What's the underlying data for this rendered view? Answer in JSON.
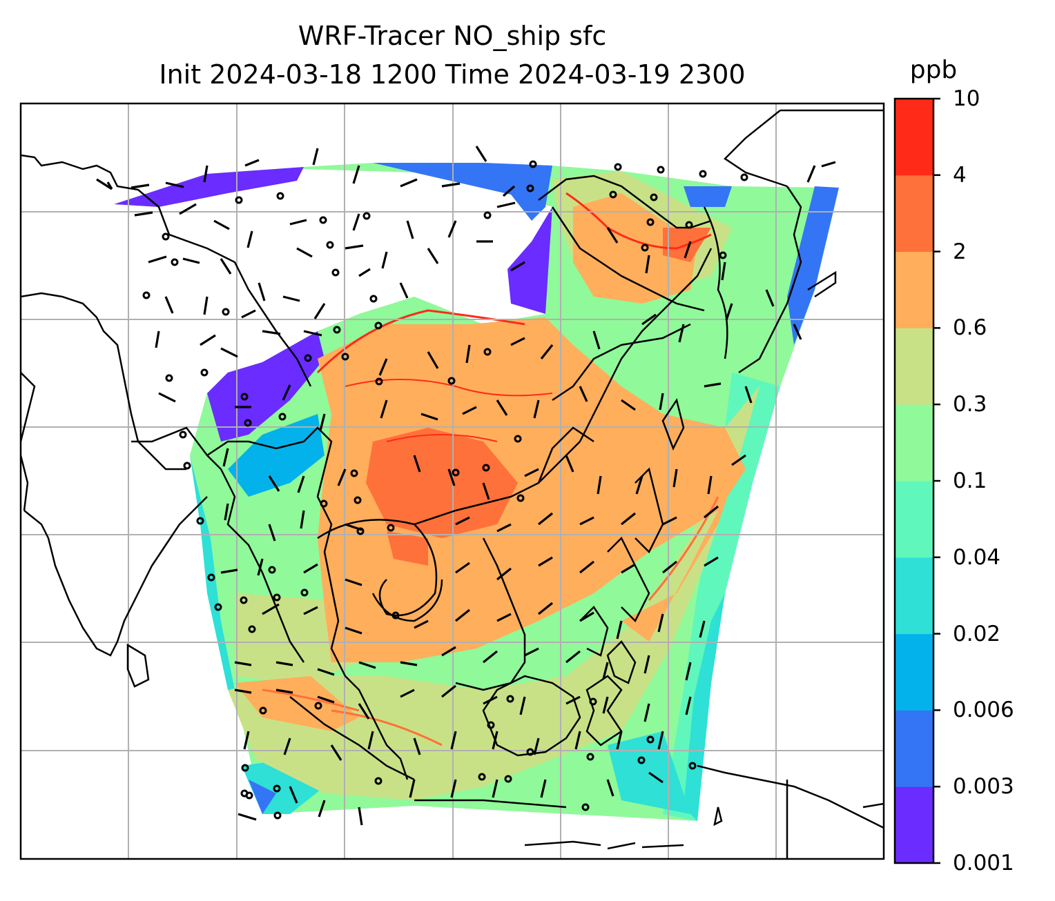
{
  "title": {
    "line1": "WRF-Tracer NO_ship sfc",
    "line2": "Init 2024-03-18 1200 Time 2024-03-19 2300"
  },
  "colorbar": {
    "unit": "ppb",
    "ticks": [
      "0.001",
      "0.003",
      "0.006",
      "0.02",
      "0.04",
      "0.1",
      "0.3",
      "0.6",
      "2",
      "4",
      "10"
    ],
    "colors": [
      "#6a2cff",
      "#3475f5",
      "#03b2ea",
      "#2ee0d6",
      "#60f7bc",
      "#90f99a",
      "#c9e186",
      "#ffae5c",
      "#ff713a",
      "#ff2a17"
    ]
  },
  "map": {
    "background": "#ffffff",
    "coastline_color": "#000000",
    "gridline_color": "#b0b0b0",
    "wind_barbs": "black barbs; circles mark calm winds"
  }
}
